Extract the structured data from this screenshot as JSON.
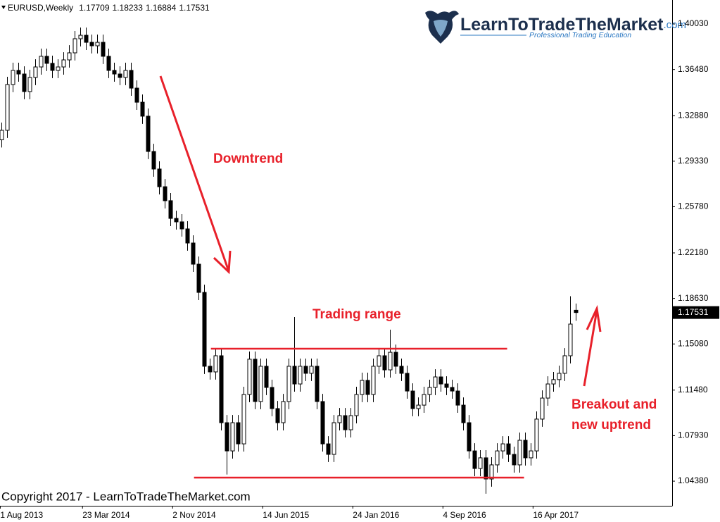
{
  "chart_data": {
    "type": "candlestick",
    "symbol": "EURUSD,Weekly",
    "open": [
      1.31,
      1.3174,
      1.3531,
      1.3641,
      1.3613,
      1.3476,
      1.3586,
      1.3668,
      1.3751,
      1.3696,
      1.3641,
      1.3668,
      1.3723,
      1.3778,
      1.3888,
      1.3915,
      1.386,
      1.3833,
      1.386,
      1.3751,
      1.3641,
      1.3613,
      1.3586,
      1.3641,
      1.3503,
      1.3393,
      1.3284,
      1.3009,
      1.2872,
      1.2734,
      1.2625,
      1.2487,
      1.246,
      1.2405,
      1.2295,
      1.213,
      1.191,
      1.1334,
      1.129,
      1.1416,
      1.0894,
      1.0674,
      1.0894,
      1.0729,
      1.1114,
      1.1389,
      1.1059,
      1.1334,
      1.1169,
      1.1004,
      1.0894,
      1.1059,
      1.1334,
      1.1196,
      1.1334,
      1.1279,
      1.1334,
      1.1059,
      1.0729,
      1.0647,
      1.0894,
      1.0949,
      1.0839,
      1.0949,
      1.1114,
      1.1224,
      1.1114,
      1.1334,
      1.1416,
      1.1306,
      1.1443,
      1.1334,
      1.1279,
      1.1141,
      1.1004,
      1.1031,
      1.1114,
      1.1169,
      1.1251,
      1.1196,
      1.1169,
      1.1141,
      1.1031,
      1.0894,
      1.0674,
      1.0537,
      1.062,
      1.0455,
      1.0565,
      1.0674,
      1.0729,
      1.0647,
      1.0565,
      1.0757,
      1.062,
      1.0674,
      1.0922,
      1.1086,
      1.1196,
      1.123,
      1.1279,
      1.1416,
      1.17709
    ],
    "high": [
      1.3234,
      1.3591,
      1.3701,
      1.3701,
      1.3673,
      1.3646,
      1.3728,
      1.3811,
      1.3811,
      1.3756,
      1.3728,
      1.3783,
      1.3838,
      1.3948,
      1.3975,
      1.3975,
      1.392,
      1.392,
      1.392,
      1.3811,
      1.3701,
      1.3673,
      1.3701,
      1.3701,
      1.3563,
      1.3453,
      1.3344,
      1.3069,
      1.2932,
      1.2794,
      1.2685,
      1.2547,
      1.252,
      1.2465,
      1.2355,
      1.219,
      1.197,
      1.1394,
      1.1476,
      1.1476,
      1.0954,
      1.0954,
      1.0954,
      1.1174,
      1.1449,
      1.1449,
      1.1394,
      1.1394,
      1.1229,
      1.1064,
      1.1119,
      1.1394,
      1.1718,
      1.1394,
      1.1394,
      1.1394,
      1.1394,
      1.1119,
      1.0789,
      1.0954,
      1.1009,
      1.1009,
      1.1009,
      1.1174,
      1.1284,
      1.1284,
      1.1394,
      1.1476,
      1.1476,
      1.1619,
      1.1503,
      1.1394,
      1.1339,
      1.1201,
      1.1091,
      1.1174,
      1.1229,
      1.1311,
      1.1311,
      1.1256,
      1.1229,
      1.1201,
      1.1091,
      1.0954,
      1.0734,
      1.068,
      1.068,
      1.0625,
      1.0734,
      1.0789,
      1.0789,
      1.0707,
      1.0817,
      1.0817,
      1.0734,
      1.0982,
      1.1146,
      1.1256,
      1.129,
      1.1339,
      1.1476,
      1.188,
      1.18233
    ],
    "low": [
      1.304,
      1.3114,
      1.3471,
      1.3553,
      1.3416,
      1.3416,
      1.3526,
      1.3608,
      1.3636,
      1.3581,
      1.3581,
      1.3608,
      1.3663,
      1.3718,
      1.3828,
      1.38,
      1.3773,
      1.3773,
      1.3691,
      1.3581,
      1.3553,
      1.3526,
      1.3526,
      1.3443,
      1.3333,
      1.3224,
      1.2949,
      1.2812,
      1.2674,
      1.2565,
      1.2427,
      1.24,
      1.2345,
      1.2235,
      1.207,
      1.185,
      1.1274,
      1.123,
      1.123,
      1.0834,
      1.049,
      1.0614,
      1.0669,
      1.0669,
      1.1054,
      1.0999,
      1.0999,
      1.1109,
      1.0944,
      1.0834,
      1.0834,
      1.0999,
      1.1136,
      1.1136,
      1.1219,
      1.1219,
      1.0999,
      1.0669,
      1.0587,
      1.0587,
      1.0834,
      1.0779,
      1.0779,
      1.0889,
      1.1054,
      1.1054,
      1.1054,
      1.1274,
      1.1246,
      1.1246,
      1.1274,
      1.1219,
      1.1081,
      1.0944,
      1.0944,
      1.0971,
      1.1054,
      1.1109,
      1.1136,
      1.1109,
      1.1081,
      1.0971,
      1.0834,
      1.0614,
      1.0477,
      1.0477,
      1.034,
      1.0395,
      1.0505,
      1.0614,
      1.0587,
      1.0505,
      1.0505,
      1.056,
      1.056,
      1.0614,
      1.0862,
      1.1026,
      1.1136,
      1.117,
      1.1219,
      1.1356,
      1.16884
    ],
    "close": [
      1.3174,
      1.3531,
      1.3641,
      1.3613,
      1.3476,
      1.3586,
      1.3668,
      1.3751,
      1.3696,
      1.3641,
      1.3668,
      1.3723,
      1.3778,
      1.3888,
      1.3915,
      1.386,
      1.3833,
      1.386,
      1.3751,
      1.3641,
      1.3613,
      1.3586,
      1.3641,
      1.3503,
      1.3393,
      1.3284,
      1.3009,
      1.2872,
      1.2734,
      1.2625,
      1.2487,
      1.246,
      1.2405,
      1.2295,
      1.213,
      1.191,
      1.1334,
      1.129,
      1.1416,
      1.0894,
      1.0674,
      1.0894,
      1.0729,
      1.1114,
      1.1389,
      1.1059,
      1.1334,
      1.1169,
      1.1004,
      1.0894,
      1.1059,
      1.1334,
      1.1196,
      1.1334,
      1.1279,
      1.1334,
      1.1059,
      1.0729,
      1.0647,
      1.0894,
      1.0949,
      1.0839,
      1.0949,
      1.1114,
      1.1224,
      1.1114,
      1.1334,
      1.1416,
      1.1306,
      1.1443,
      1.1334,
      1.1279,
      1.1141,
      1.1004,
      1.1031,
      1.1114,
      1.1169,
      1.1251,
      1.1196,
      1.1169,
      1.1141,
      1.1031,
      1.0894,
      1.0674,
      1.0537,
      1.062,
      1.0455,
      1.0565,
      1.0674,
      1.0729,
      1.0647,
      1.0565,
      1.0757,
      1.062,
      1.0674,
      1.0922,
      1.1086,
      1.1196,
      1.123,
      1.1279,
      1.1416,
      1.1663,
      1.17531
    ],
    "xlim": [
      -0.25,
      119.1
    ],
    "ylim": [
      1.0246,
      1.419
    ],
    "xticks": [
      {
        "value": -0.2,
        "label": "1 Aug 2013"
      },
      {
        "value": 14.4,
        "label": "23 Mar 2014"
      },
      {
        "value": 30.4,
        "label": "2 Nov 2014"
      },
      {
        "value": 46.4,
        "label": "14 Jun 2015"
      },
      {
        "value": 62.4,
        "label": "24 Jan 2016"
      },
      {
        "value": 78.4,
        "label": "4 Sep 2016"
      },
      {
        "value": 94.4,
        "label": "16 Apr 2017"
      }
    ],
    "yticks": [
      {
        "value": 1.4003,
        "label": "1.40030"
      },
      {
        "value": 1.3648,
        "label": "1.36480"
      },
      {
        "value": 1.3288,
        "label": "1.32880"
      },
      {
        "value": 1.2933,
        "label": "1.29330"
      },
      {
        "value": 1.2578,
        "label": "1.25780"
      },
      {
        "value": 1.2218,
        "label": "1.22180"
      },
      {
        "value": 1.1863,
        "label": "1.18630"
      },
      {
        "value": 1.1508,
        "label": "1.15080"
      },
      {
        "value": 1.1148,
        "label": "1.11480"
      },
      {
        "value": 1.0793,
        "label": "1.07930"
      },
      {
        "value": 1.0438,
        "label": "1.04380"
      }
    ],
    "levels": [
      {
        "value": 1.1471,
        "from": 37.2,
        "to": 89.8
      },
      {
        "value": 1.0466,
        "from": 34.2,
        "to": 92.8
      }
    ],
    "level_color": "#e8202a",
    "bull_color": "#ffffff",
    "bear_color": "#000000",
    "annotations": [
      "Downtrend",
      "Trading range",
      "Breakout and",
      "new uptrend"
    ]
  },
  "logo": {
    "name": "LearnToTradeTheMarket",
    "tld": ".com",
    "tagline": "Professional Trading Education"
  },
  "copyright": "Copyright 2017 - LearnToTradeTheMarket.com"
}
